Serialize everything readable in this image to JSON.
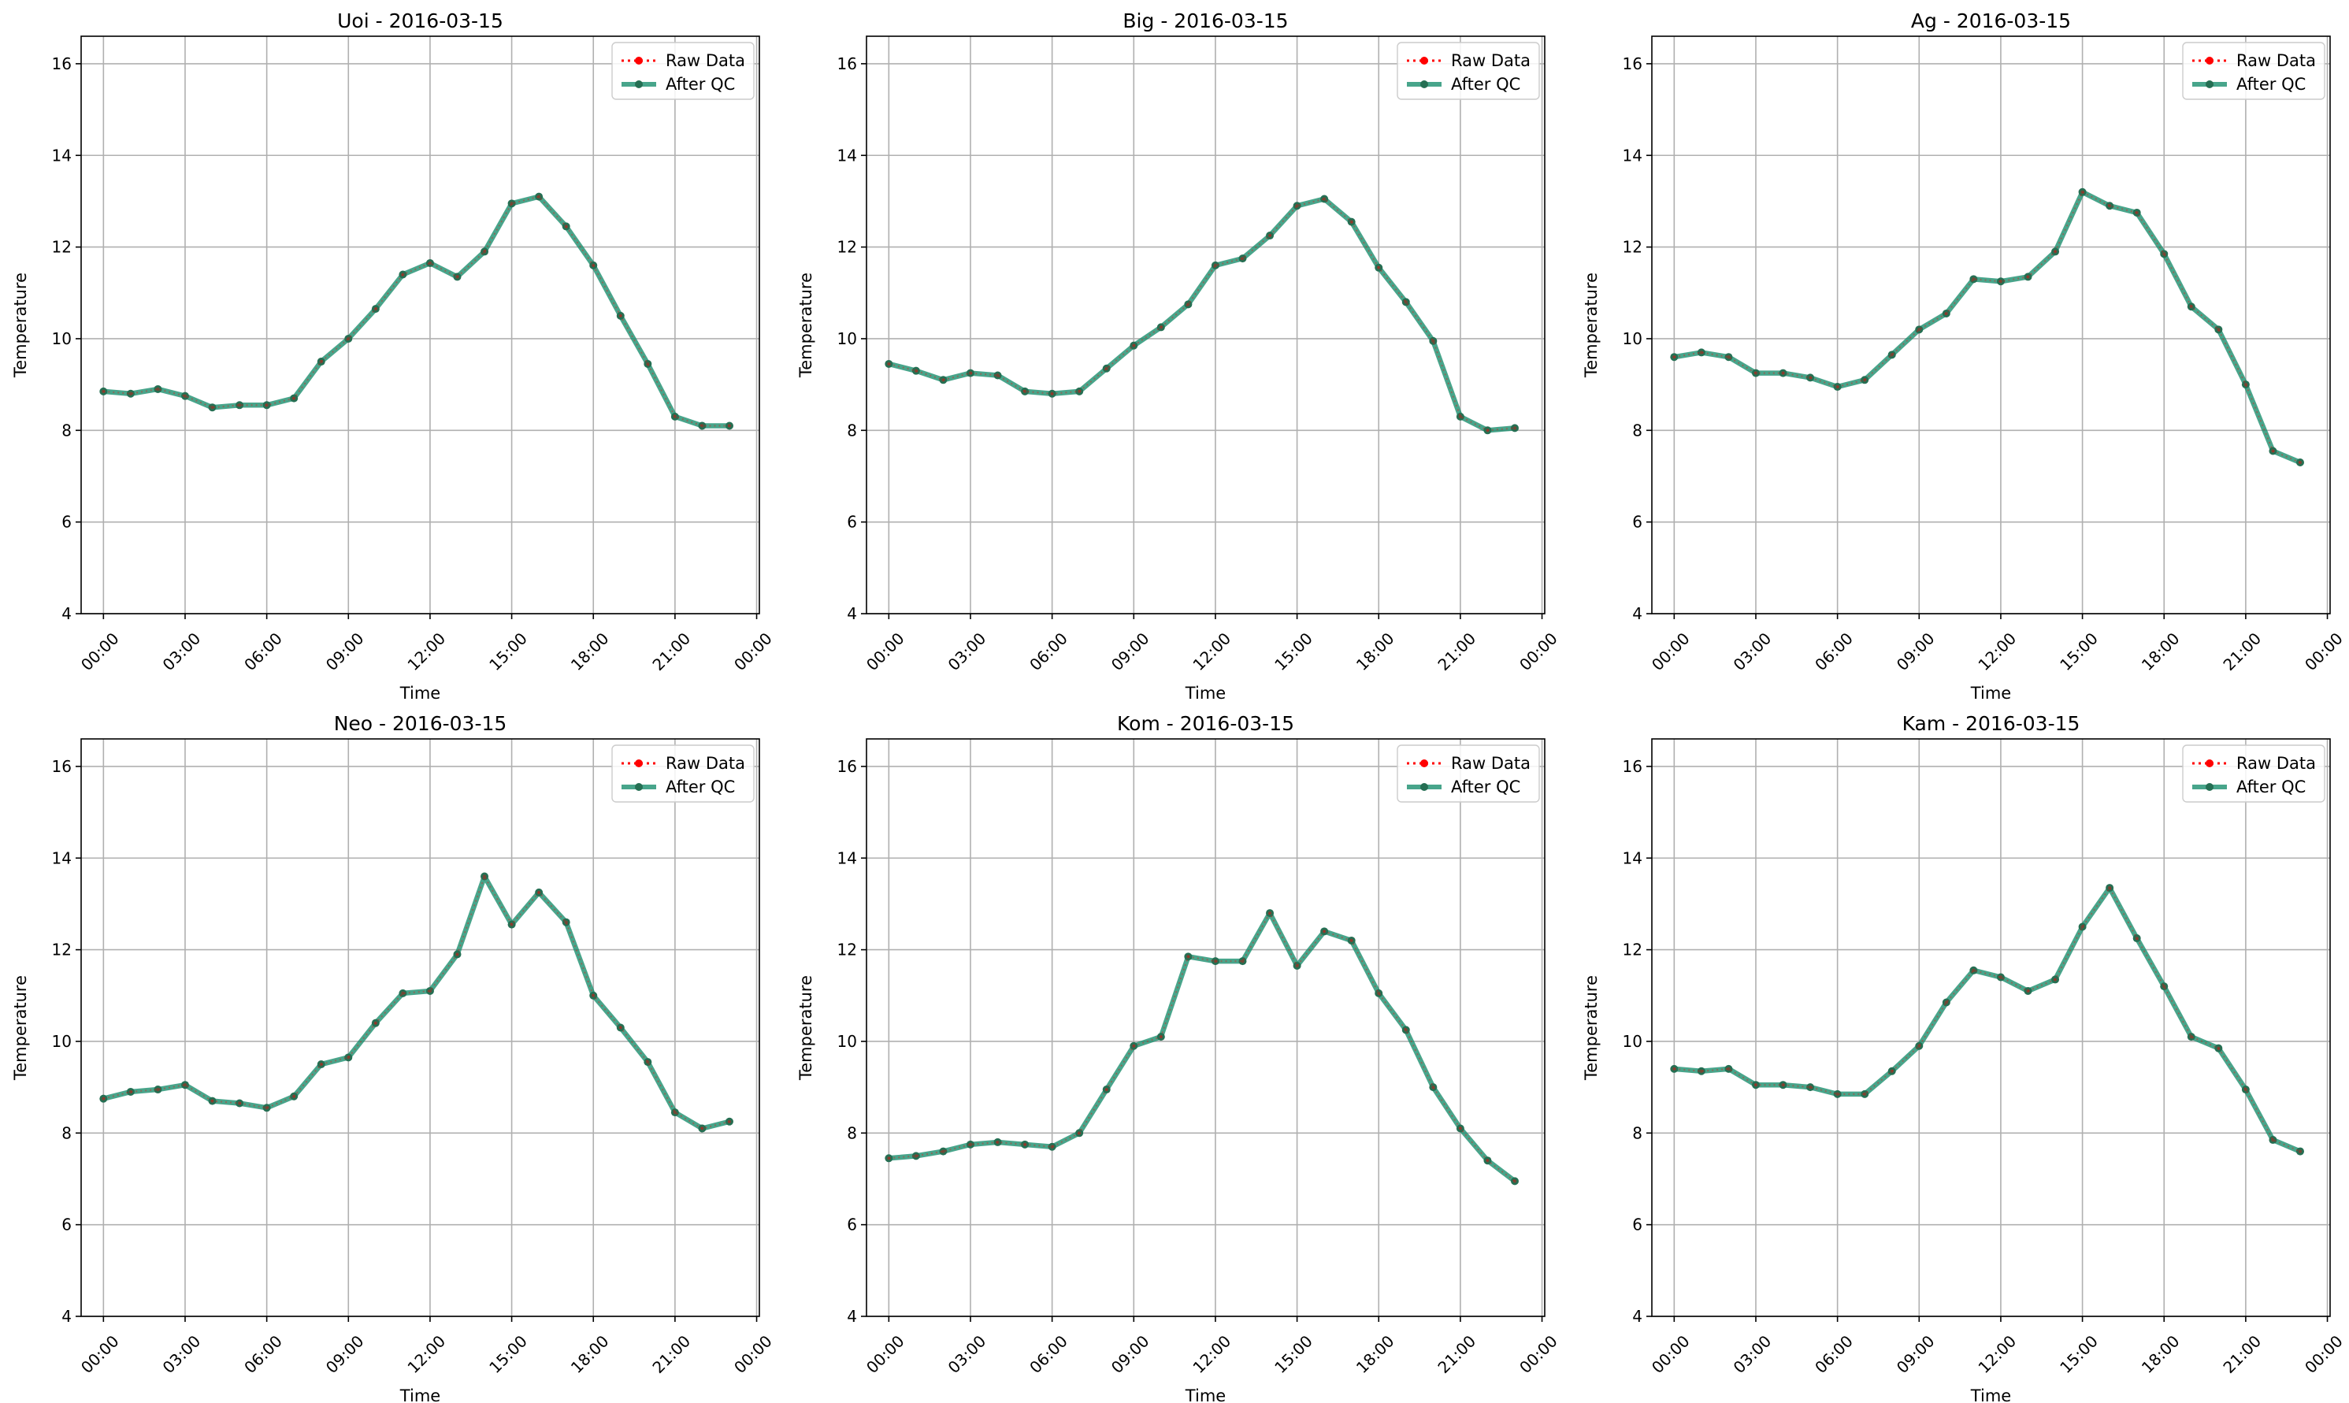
{
  "figure": {
    "title": ""
  },
  "legend": {
    "placement": "upper-right",
    "items": [
      {
        "key": "raw",
        "label": "Raw Data",
        "color": "#ff0000",
        "style": "dotted",
        "marker": "circle"
      },
      {
        "key": "qc",
        "label": "After QC",
        "color": "#1a8f6e",
        "style": "solid",
        "marker": "circle"
      }
    ]
  },
  "colors": {
    "qc_line": "#1a8f6e",
    "qc_marker": "#256f53",
    "raw": "#ff0000",
    "grid": "#b0b0b0"
  },
  "chart_data": [
    {
      "type": "line",
      "title": "Uoi - 2016-03-15",
      "xlabel": "Time",
      "ylabel": "Temperature",
      "xlim": [
        "2016-03-15 00:00",
        "2016-03-16 00:00"
      ],
      "ylim": [
        4,
        16.6
      ],
      "x_ticks": [
        "00:00",
        "03:00",
        "06:00",
        "09:00",
        "12:00",
        "15:00",
        "18:00",
        "21:00",
        "00:00"
      ],
      "y_ticks": [
        "4",
        "6",
        "8",
        "10",
        "12",
        "14",
        "16"
      ],
      "grid": true,
      "legend_position": "top-right",
      "x": [
        "00:00",
        "01:00",
        "02:00",
        "03:00",
        "04:00",
        "05:00",
        "06:00",
        "07:00",
        "08:00",
        "09:00",
        "10:00",
        "11:00",
        "12:00",
        "13:00",
        "14:00",
        "15:00",
        "16:00",
        "17:00",
        "18:00",
        "19:00",
        "20:00",
        "21:00",
        "22:00",
        "23:00"
      ],
      "series": [
        {
          "name": "Raw Data",
          "values": [
            8.85,
            8.8,
            8.9,
            8.75,
            8.5,
            8.55,
            8.55,
            8.7,
            9.5,
            10.0,
            10.65,
            11.4,
            11.65,
            11.35,
            11.9,
            12.95,
            13.1,
            12.45,
            11.6,
            10.5,
            9.45,
            8.3,
            8.1,
            8.1
          ]
        },
        {
          "name": "After QC",
          "values": [
            8.85,
            8.8,
            8.9,
            8.75,
            8.5,
            8.55,
            8.55,
            8.7,
            9.5,
            10.0,
            10.65,
            11.4,
            11.65,
            11.35,
            11.9,
            12.95,
            13.1,
            12.45,
            11.6,
            10.5,
            9.45,
            8.3,
            8.1,
            8.1
          ]
        }
      ]
    },
    {
      "type": "line",
      "title": "Big - 2016-03-15",
      "xlabel": "Time",
      "ylabel": "Temperature",
      "xlim": [
        "2016-03-15 00:00",
        "2016-03-16 00:00"
      ],
      "ylim": [
        4,
        16.6
      ],
      "x_ticks": [
        "00:00",
        "03:00",
        "06:00",
        "09:00",
        "12:00",
        "15:00",
        "18:00",
        "21:00",
        "00:00"
      ],
      "y_ticks": [
        "4",
        "6",
        "8",
        "10",
        "12",
        "14",
        "16"
      ],
      "grid": true,
      "legend_position": "top-right",
      "x": [
        "00:00",
        "01:00",
        "02:00",
        "03:00",
        "04:00",
        "05:00",
        "06:00",
        "07:00",
        "08:00",
        "09:00",
        "10:00",
        "11:00",
        "12:00",
        "13:00",
        "14:00",
        "15:00",
        "16:00",
        "17:00",
        "18:00",
        "19:00",
        "20:00",
        "21:00",
        "22:00",
        "23:00"
      ],
      "series": [
        {
          "name": "Raw Data",
          "values": [
            9.45,
            9.3,
            9.1,
            9.25,
            9.2,
            8.85,
            8.8,
            8.85,
            9.35,
            9.85,
            10.25,
            10.75,
            11.6,
            11.75,
            12.25,
            12.9,
            13.05,
            12.55,
            11.55,
            10.8,
            9.95,
            8.3,
            8.0,
            8.05
          ]
        },
        {
          "name": "After QC",
          "values": [
            9.45,
            9.3,
            9.1,
            9.25,
            9.2,
            8.85,
            8.8,
            8.85,
            9.35,
            9.85,
            10.25,
            10.75,
            11.6,
            11.75,
            12.25,
            12.9,
            13.05,
            12.55,
            11.55,
            10.8,
            9.95,
            8.3,
            8.0,
            8.05
          ]
        }
      ]
    },
    {
      "type": "line",
      "title": "Ag - 2016-03-15",
      "xlabel": "Time",
      "ylabel": "Temperature",
      "xlim": [
        "2016-03-15 00:00",
        "2016-03-16 00:00"
      ],
      "ylim": [
        4,
        16.6
      ],
      "x_ticks": [
        "00:00",
        "03:00",
        "06:00",
        "09:00",
        "12:00",
        "15:00",
        "18:00",
        "21:00",
        "00:00"
      ],
      "y_ticks": [
        "4",
        "6",
        "8",
        "10",
        "12",
        "14",
        "16"
      ],
      "grid": true,
      "legend_position": "top-right",
      "x": [
        "00:00",
        "01:00",
        "02:00",
        "03:00",
        "04:00",
        "05:00",
        "06:00",
        "07:00",
        "08:00",
        "09:00",
        "10:00",
        "11:00",
        "12:00",
        "13:00",
        "14:00",
        "15:00",
        "16:00",
        "17:00",
        "18:00",
        "19:00",
        "20:00",
        "21:00",
        "22:00",
        "23:00"
      ],
      "series": [
        {
          "name": "Raw Data",
          "values": [
            9.6,
            9.7,
            9.6,
            9.25,
            9.25,
            9.15,
            8.95,
            9.1,
            9.65,
            10.2,
            10.55,
            11.3,
            11.25,
            11.35,
            11.9,
            13.2,
            12.9,
            12.75,
            11.85,
            10.7,
            10.2,
            9.0,
            7.55,
            7.3
          ]
        },
        {
          "name": "After QC",
          "values": [
            9.6,
            9.7,
            9.6,
            9.25,
            9.25,
            9.15,
            8.95,
            9.1,
            9.65,
            10.2,
            10.55,
            11.3,
            11.25,
            11.35,
            11.9,
            13.2,
            12.9,
            12.75,
            11.85,
            10.7,
            10.2,
            9.0,
            7.55,
            7.3
          ]
        }
      ]
    },
    {
      "type": "line",
      "title": "Neo - 2016-03-15",
      "xlabel": "Time",
      "ylabel": "Temperature",
      "xlim": [
        "2016-03-15 00:00",
        "2016-03-16 00:00"
      ],
      "ylim": [
        4,
        16.6
      ],
      "x_ticks": [
        "00:00",
        "03:00",
        "06:00",
        "09:00",
        "12:00",
        "15:00",
        "18:00",
        "21:00",
        "00:00"
      ],
      "y_ticks": [
        "4",
        "6",
        "8",
        "10",
        "12",
        "14",
        "16"
      ],
      "grid": true,
      "legend_position": "top-right",
      "x": [
        "00:00",
        "01:00",
        "02:00",
        "03:00",
        "04:00",
        "05:00",
        "06:00",
        "07:00",
        "08:00",
        "09:00",
        "10:00",
        "11:00",
        "12:00",
        "13:00",
        "14:00",
        "15:00",
        "16:00",
        "17:00",
        "18:00",
        "19:00",
        "20:00",
        "21:00",
        "22:00",
        "23:00"
      ],
      "series": [
        {
          "name": "Raw Data",
          "values": [
            8.75,
            8.9,
            8.95,
            9.05,
            8.7,
            8.65,
            8.55,
            8.8,
            9.5,
            9.65,
            10.4,
            11.05,
            11.1,
            11.9,
            13.6,
            12.55,
            13.25,
            12.6,
            11.0,
            10.3,
            9.55,
            8.45,
            8.1,
            8.25
          ]
        },
        {
          "name": "After QC",
          "values": [
            8.75,
            8.9,
            8.95,
            9.05,
            8.7,
            8.65,
            8.55,
            8.8,
            9.5,
            9.65,
            10.4,
            11.05,
            11.1,
            11.9,
            13.6,
            12.55,
            13.25,
            12.6,
            11.0,
            10.3,
            9.55,
            8.45,
            8.1,
            8.25
          ]
        }
      ]
    },
    {
      "type": "line",
      "title": "Kom - 2016-03-15",
      "xlabel": "Time",
      "ylabel": "Temperature",
      "xlim": [
        "2016-03-15 00:00",
        "2016-03-16 00:00"
      ],
      "ylim": [
        4,
        16.6
      ],
      "x_ticks": [
        "00:00",
        "03:00",
        "06:00",
        "09:00",
        "12:00",
        "15:00",
        "18:00",
        "21:00",
        "00:00"
      ],
      "y_ticks": [
        "4",
        "6",
        "8",
        "10",
        "12",
        "14",
        "16"
      ],
      "grid": true,
      "legend_position": "top-right",
      "x": [
        "00:00",
        "01:00",
        "02:00",
        "03:00",
        "04:00",
        "05:00",
        "06:00",
        "07:00",
        "08:00",
        "09:00",
        "10:00",
        "11:00",
        "12:00",
        "13:00",
        "14:00",
        "15:00",
        "16:00",
        "17:00",
        "18:00",
        "19:00",
        "20:00",
        "21:00",
        "22:00",
        "23:00"
      ],
      "series": [
        {
          "name": "Raw Data",
          "values": [
            7.45,
            7.5,
            7.6,
            7.75,
            7.8,
            7.75,
            7.7,
            8.0,
            8.95,
            9.9,
            10.1,
            11.85,
            11.75,
            11.75,
            12.8,
            11.65,
            12.4,
            12.2,
            11.05,
            10.25,
            9.0,
            8.1,
            7.4,
            6.95
          ]
        },
        {
          "name": "After QC",
          "values": [
            7.45,
            7.5,
            7.6,
            7.75,
            7.8,
            7.75,
            7.7,
            8.0,
            8.95,
            9.9,
            10.1,
            11.85,
            11.75,
            11.75,
            12.8,
            11.65,
            12.4,
            12.2,
            11.05,
            10.25,
            9.0,
            8.1,
            7.4,
            6.95
          ]
        }
      ]
    },
    {
      "type": "line",
      "title": "Kam - 2016-03-15",
      "xlabel": "Time",
      "ylabel": "Temperature",
      "xlim": [
        "2016-03-15 00:00",
        "2016-03-16 00:00"
      ],
      "ylim": [
        4,
        16.6
      ],
      "x_ticks": [
        "00:00",
        "03:00",
        "06:00",
        "09:00",
        "12:00",
        "15:00",
        "18:00",
        "21:00",
        "00:00"
      ],
      "y_ticks": [
        "4",
        "6",
        "8",
        "10",
        "12",
        "14",
        "16"
      ],
      "grid": true,
      "legend_position": "top-right",
      "x": [
        "00:00",
        "01:00",
        "02:00",
        "03:00",
        "04:00",
        "05:00",
        "06:00",
        "07:00",
        "08:00",
        "09:00",
        "10:00",
        "11:00",
        "12:00",
        "13:00",
        "14:00",
        "15:00",
        "16:00",
        "17:00",
        "18:00",
        "19:00",
        "20:00",
        "21:00",
        "22:00",
        "23:00"
      ],
      "series": [
        {
          "name": "Raw Data",
          "values": [
            9.4,
            9.35,
            9.4,
            9.05,
            9.05,
            9.0,
            8.85,
            8.85,
            9.35,
            9.9,
            10.85,
            11.55,
            11.4,
            11.1,
            11.35,
            12.5,
            13.35,
            12.25,
            11.2,
            10.1,
            9.85,
            8.95,
            7.85,
            7.6
          ]
        },
        {
          "name": "After QC",
          "values": [
            9.4,
            9.35,
            9.4,
            9.05,
            9.05,
            9.0,
            8.85,
            8.85,
            9.35,
            9.9,
            10.85,
            11.55,
            11.4,
            11.1,
            11.35,
            12.5,
            13.35,
            12.25,
            11.2,
            10.1,
            9.85,
            8.95,
            7.85,
            7.6
          ]
        }
      ]
    }
  ]
}
